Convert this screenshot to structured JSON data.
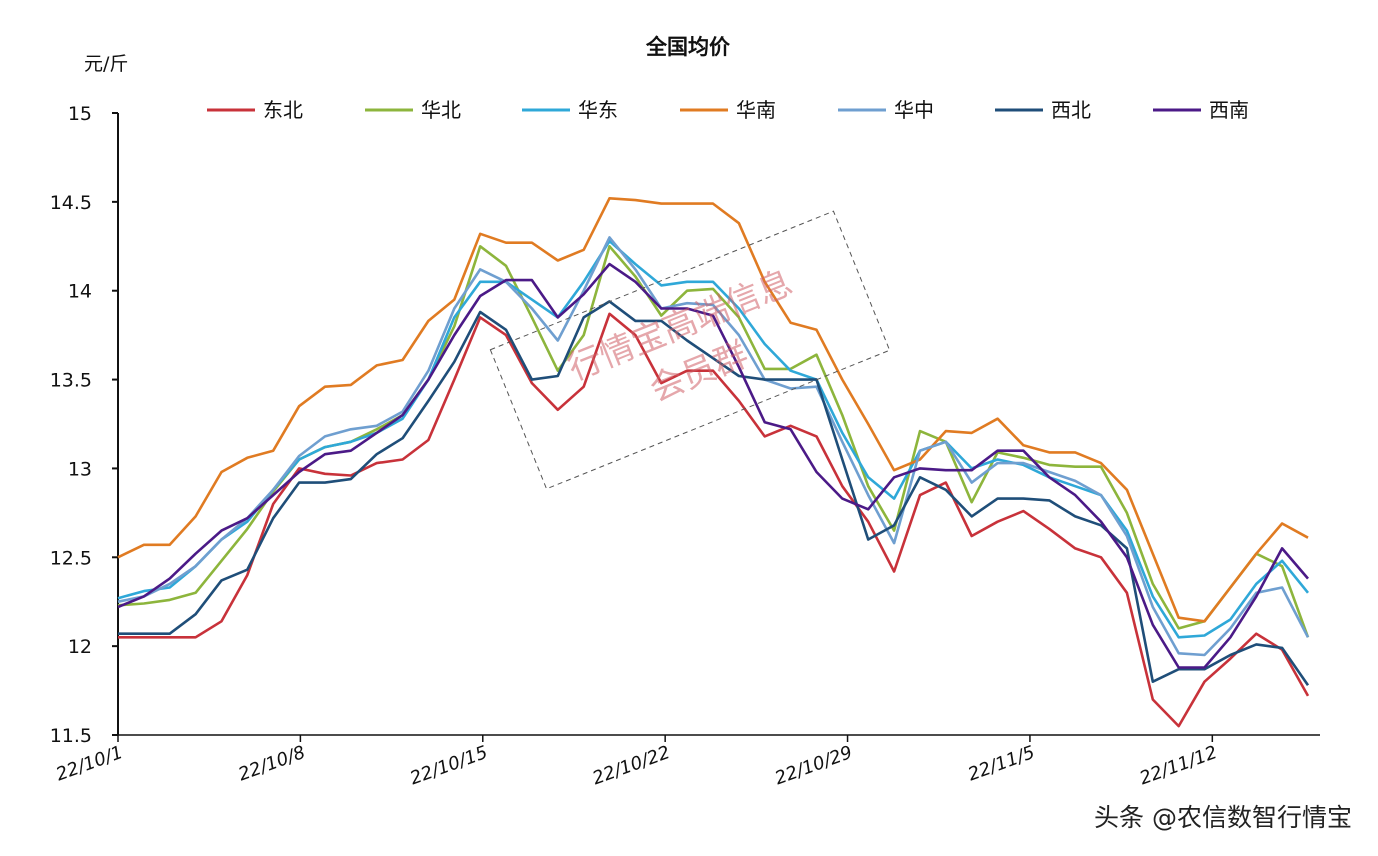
{
  "chart_data": {
    "type": "line",
    "title": "全国均价",
    "ylabel": "元/斤",
    "xlabel": "",
    "ylim": [
      11.5,
      15
    ],
    "yticks": [
      "11.5",
      "12",
      "12.5",
      "13",
      "13.5",
      "14",
      "14.5",
      "15"
    ],
    "xtick_labels": [
      "22/10/1",
      "22/10/8",
      "22/10/15",
      "22/10/22",
      "22/10/29",
      "22/11/5",
      "22/11/12"
    ],
    "x": [
      "10/1",
      "10/2",
      "10/3",
      "10/4",
      "10/5",
      "10/6",
      "10/7",
      "10/8",
      "10/9",
      "10/10",
      "10/11",
      "10/12",
      "10/13",
      "10/14",
      "10/15",
      "10/16",
      "10/17",
      "10/18",
      "10/19",
      "10/20",
      "10/21",
      "10/22",
      "10/23",
      "10/24",
      "10/25",
      "10/26",
      "10/27",
      "10/28",
      "10/29",
      "10/30",
      "10/31",
      "11/1",
      "11/2",
      "11/3",
      "11/4",
      "11/5",
      "11/6",
      "11/7",
      "11/8",
      "11/9",
      "11/10",
      "11/11",
      "11/12",
      "11/13",
      "11/14",
      "11/15",
      "11/16"
    ],
    "grid": false,
    "legend": "top",
    "series": [
      {
        "name": "东北",
        "color": "#c8323a",
        "values": [
          12.05,
          12.05,
          12.05,
          12.05,
          12.14,
          12.4,
          12.8,
          13.0,
          12.97,
          12.96,
          13.03,
          13.05,
          13.16,
          13.5,
          13.85,
          13.75,
          13.48,
          13.33,
          13.46,
          13.87,
          13.75,
          13.48,
          13.55,
          13.55,
          13.38,
          13.18,
          13.24,
          13.18,
          12.9,
          12.7,
          12.42,
          12.85,
          12.92,
          12.62,
          12.7,
          12.76,
          12.66,
          12.55,
          12.5,
          12.3,
          11.7,
          11.55,
          11.8,
          11.93,
          12.07,
          11.98,
          11.72
        ]
      },
      {
        "name": "华北",
        "color": "#8db53c",
        "values": [
          12.23,
          12.24,
          12.26,
          12.3,
          12.48,
          12.66,
          12.87,
          13.05,
          13.12,
          13.15,
          13.22,
          13.3,
          13.5,
          13.8,
          14.25,
          14.14,
          13.85,
          13.55,
          13.75,
          14.25,
          14.08,
          13.86,
          14.0,
          14.01,
          13.85,
          13.56,
          13.56,
          13.64,
          13.3,
          12.9,
          12.65,
          13.21,
          13.15,
          12.81,
          13.09,
          13.06,
          13.02,
          13.01,
          13.01,
          12.75,
          12.35,
          12.1,
          12.14,
          12.33,
          12.52,
          12.45,
          12.05
        ]
      },
      {
        "name": "华东",
        "color": "#2fa8d8",
        "values": [
          12.27,
          12.31,
          12.33,
          12.45,
          12.6,
          12.7,
          12.88,
          13.05,
          13.12,
          13.15,
          13.2,
          13.28,
          13.5,
          13.85,
          14.05,
          14.05,
          13.95,
          13.85,
          14.05,
          14.28,
          14.15,
          14.03,
          14.05,
          14.05,
          13.9,
          13.7,
          13.55,
          13.5,
          13.2,
          12.95,
          12.83,
          13.1,
          13.15,
          13.0,
          13.05,
          13.02,
          12.95,
          12.9,
          12.85,
          12.65,
          12.28,
          12.05,
          12.06,
          12.15,
          12.35,
          12.48,
          12.3
        ]
      },
      {
        "name": "华南",
        "color": "#e07b22",
        "values": [
          12.5,
          12.57,
          12.57,
          12.73,
          12.98,
          13.06,
          13.1,
          13.35,
          13.46,
          13.47,
          13.58,
          13.61,
          13.83,
          13.95,
          14.32,
          14.27,
          14.27,
          14.17,
          14.23,
          14.52,
          14.51,
          14.49,
          14.49,
          14.49,
          14.38,
          14.05,
          13.82,
          13.78,
          13.5,
          13.25,
          12.99,
          13.05,
          13.21,
          13.2,
          13.28,
          13.13,
          13.09,
          13.09,
          13.03,
          12.88,
          12.52,
          12.16,
          12.14,
          12.33,
          12.52,
          12.69,
          12.61
        ]
      },
      {
        "name": "华中",
        "color": "#6f9fd0",
        "values": [
          12.25,
          12.28,
          12.35,
          12.45,
          12.6,
          12.72,
          12.88,
          13.07,
          13.18,
          13.22,
          13.24,
          13.32,
          13.55,
          13.9,
          14.12,
          14.05,
          13.9,
          13.72,
          14.0,
          14.3,
          14.12,
          13.9,
          13.93,
          13.92,
          13.75,
          13.5,
          13.45,
          13.46,
          13.15,
          12.85,
          12.58,
          13.1,
          13.15,
          12.92,
          13.03,
          13.03,
          12.98,
          12.93,
          12.85,
          12.62,
          12.22,
          11.96,
          11.95,
          12.1,
          12.3,
          12.33,
          12.05
        ]
      },
      {
        "name": "西北",
        "color": "#1f4e79",
        "values": [
          12.07,
          12.07,
          12.07,
          12.18,
          12.37,
          12.43,
          12.72,
          12.92,
          12.92,
          12.94,
          13.08,
          13.17,
          13.38,
          13.6,
          13.88,
          13.78,
          13.5,
          13.52,
          13.85,
          13.94,
          13.83,
          13.83,
          13.72,
          13.62,
          13.52,
          13.5,
          13.5,
          13.5,
          13.05,
          12.6,
          12.68,
          12.95,
          12.88,
          12.73,
          12.83,
          12.83,
          12.82,
          12.73,
          12.68,
          12.55,
          11.8,
          11.87,
          11.87,
          11.95,
          12.01,
          11.99,
          11.78
        ]
      },
      {
        "name": "西南",
        "color": "#4b1a87",
        "values": [
          12.22,
          12.28,
          12.38,
          12.52,
          12.65,
          12.72,
          12.85,
          12.98,
          13.08,
          13.1,
          13.2,
          13.3,
          13.5,
          13.75,
          13.97,
          14.06,
          14.06,
          13.85,
          13.98,
          14.15,
          14.05,
          13.9,
          13.9,
          13.86,
          13.57,
          13.26,
          13.22,
          12.98,
          12.83,
          12.77,
          12.95,
          13.0,
          12.99,
          12.99,
          13.1,
          13.1,
          12.95,
          12.85,
          12.7,
          12.5,
          12.12,
          11.88,
          11.88,
          12.05,
          12.28,
          12.55,
          12.38
        ]
      }
    ]
  },
  "watermark": {
    "line1": "行情宝高端信息",
    "line2": "会员群"
  },
  "credit": "头条 @农信数智行情宝"
}
